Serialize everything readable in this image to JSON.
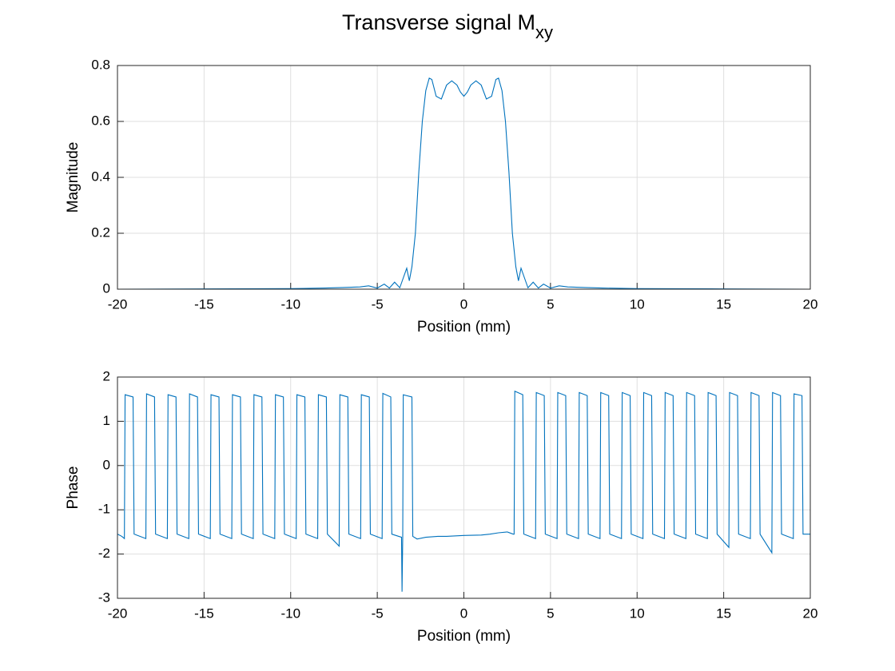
{
  "title": "Transverse signal M",
  "title_subscript": "xy",
  "chart_data": [
    {
      "type": "line",
      "xlabel": "Position (mm)",
      "ylabel": "Magnitude",
      "color": "#0072bd",
      "grid": true,
      "xlim": [
        -20,
        20
      ],
      "xticks": [
        -20,
        -15,
        -10,
        -5,
        0,
        5,
        10,
        15,
        20
      ],
      "ylim": [
        0,
        0.8
      ],
      "yticks": [
        0,
        0.2,
        0.4,
        0.6,
        0.8
      ],
      "x": [
        -20,
        -15,
        -10,
        -8,
        -7,
        -6,
        -5.5,
        -5,
        -4.6,
        -4.3,
        -4,
        -3.7,
        -3.5,
        -3.3,
        -3.15,
        -3,
        -2.8,
        -2.6,
        -2.4,
        -2.2,
        -2,
        -1.85,
        -1.6,
        -1.3,
        -1,
        -0.7,
        -0.4,
        -0.2,
        0,
        0.2,
        0.4,
        0.7,
        1,
        1.3,
        1.6,
        1.85,
        2,
        2.2,
        2.4,
        2.6,
        2.8,
        3,
        3.15,
        3.3,
        3.5,
        3.7,
        4,
        4.3,
        4.6,
        5,
        5.5,
        6,
        7,
        8,
        10,
        15,
        20
      ],
      "values": [
        0,
        0.001,
        0.002,
        0.004,
        0.006,
        0.008,
        0.012,
        0.004,
        0.018,
        0.004,
        0.025,
        0.005,
        0.04,
        0.075,
        0.03,
        0.08,
        0.2,
        0.42,
        0.6,
        0.71,
        0.755,
        0.75,
        0.69,
        0.68,
        0.73,
        0.745,
        0.73,
        0.705,
        0.69,
        0.705,
        0.73,
        0.745,
        0.73,
        0.68,
        0.69,
        0.75,
        0.755,
        0.71,
        0.6,
        0.42,
        0.2,
        0.08,
        0.03,
        0.075,
        0.04,
        0.005,
        0.025,
        0.004,
        0.018,
        0.004,
        0.012,
        0.008,
        0.006,
        0.004,
        0.002,
        0.001,
        0
      ]
    },
    {
      "type": "line",
      "xlabel": "Position (mm)",
      "ylabel": "Phase",
      "color": "#0072bd",
      "grid": true,
      "xlim": [
        -20,
        20
      ],
      "xticks": [
        -20,
        -15,
        -10,
        -5,
        0,
        5,
        10,
        15,
        20
      ],
      "ylim": [
        -3,
        2
      ],
      "yticks": [
        -3,
        -2,
        -1,
        0,
        1,
        2
      ],
      "x": [
        -20,
        -19.75,
        -19.6,
        -19.56,
        -19.1,
        -19.04,
        -18.36,
        -18.32,
        -17.86,
        -17.8,
        -17.12,
        -17.08,
        -16.62,
        -16.56,
        -15.88,
        -15.84,
        -15.38,
        -15.32,
        -14.64,
        -14.6,
        -14.14,
        -14.08,
        -13.4,
        -13.36,
        -12.9,
        -12.84,
        -12.16,
        -12.12,
        -11.66,
        -11.6,
        -10.92,
        -10.88,
        -10.42,
        -10.36,
        -9.68,
        -9.64,
        -9.18,
        -9.12,
        -8.44,
        -8.4,
        -7.94,
        -7.88,
        -7.2,
        -7.16,
        -6.7,
        -6.64,
        -5.96,
        -5.92,
        -5.46,
        -5.4,
        -4.72,
        -4.68,
        -4.22,
        -4.16,
        -3.6,
        -3.57,
        -3.53,
        -3.5,
        -3.0,
        -2.95,
        -2.7,
        -2.2,
        -1.5,
        -1,
        0,
        1,
        1.5,
        2,
        2.5,
        2.85,
        2.9,
        2.94,
        3.4,
        3.46,
        4.14,
        4.18,
        4.64,
        4.7,
        5.38,
        5.42,
        5.88,
        5.94,
        6.62,
        6.66,
        7.12,
        7.18,
        7.86,
        7.9,
        8.36,
        8.42,
        9.1,
        9.14,
        9.6,
        9.66,
        10.34,
        10.38,
        10.84,
        10.9,
        11.58,
        11.62,
        12.08,
        12.14,
        12.82,
        12.86,
        13.32,
        13.38,
        14.06,
        14.1,
        14.56,
        14.62,
        15.3,
        15.34,
        15.8,
        15.86,
        16.54,
        16.58,
        17.04,
        17.1,
        17.78,
        17.82,
        18.28,
        18.34,
        19.02,
        19.06,
        19.52,
        19.58,
        20
      ],
      "values": [
        -1.55,
        -1.6,
        -1.65,
        1.6,
        1.55,
        -1.55,
        -1.65,
        1.62,
        1.55,
        -1.55,
        -1.65,
        1.6,
        1.55,
        -1.55,
        -1.65,
        1.62,
        1.55,
        -1.55,
        -1.65,
        1.6,
        1.55,
        -1.55,
        -1.65,
        1.6,
        1.55,
        -1.55,
        -1.65,
        1.6,
        1.55,
        -1.55,
        -1.65,
        1.6,
        1.55,
        -1.55,
        -1.65,
        1.6,
        1.55,
        -1.55,
        -1.65,
        1.6,
        1.55,
        -1.55,
        -1.82,
        1.6,
        1.55,
        -1.55,
        -1.65,
        1.6,
        1.55,
        -1.55,
        -1.65,
        1.63,
        1.55,
        -1.55,
        -1.62,
        -2.85,
        -1.6,
        1.6,
        1.55,
        -1.6,
        -1.66,
        -1.62,
        -1.6,
        -1.6,
        -1.58,
        -1.57,
        -1.55,
        -1.52,
        -1.5,
        -1.55,
        -1.55,
        1.68,
        1.6,
        -1.55,
        -1.65,
        1.65,
        1.58,
        -1.55,
        -1.65,
        1.65,
        1.58,
        -1.55,
        -1.65,
        1.65,
        1.58,
        -1.55,
        -1.65,
        1.65,
        1.58,
        -1.55,
        -1.65,
        1.65,
        1.58,
        -1.55,
        -1.65,
        1.65,
        1.58,
        -1.55,
        -1.65,
        1.65,
        1.58,
        -1.55,
        -1.65,
        1.65,
        1.58,
        -1.55,
        -1.65,
        1.65,
        1.58,
        -1.55,
        -1.85,
        1.65,
        1.58,
        -1.55,
        -1.65,
        1.65,
        1.58,
        -1.55,
        -1.97,
        1.65,
        1.58,
        -1.55,
        -1.65,
        1.62,
        1.58,
        -1.55,
        -1.55
      ]
    }
  ]
}
